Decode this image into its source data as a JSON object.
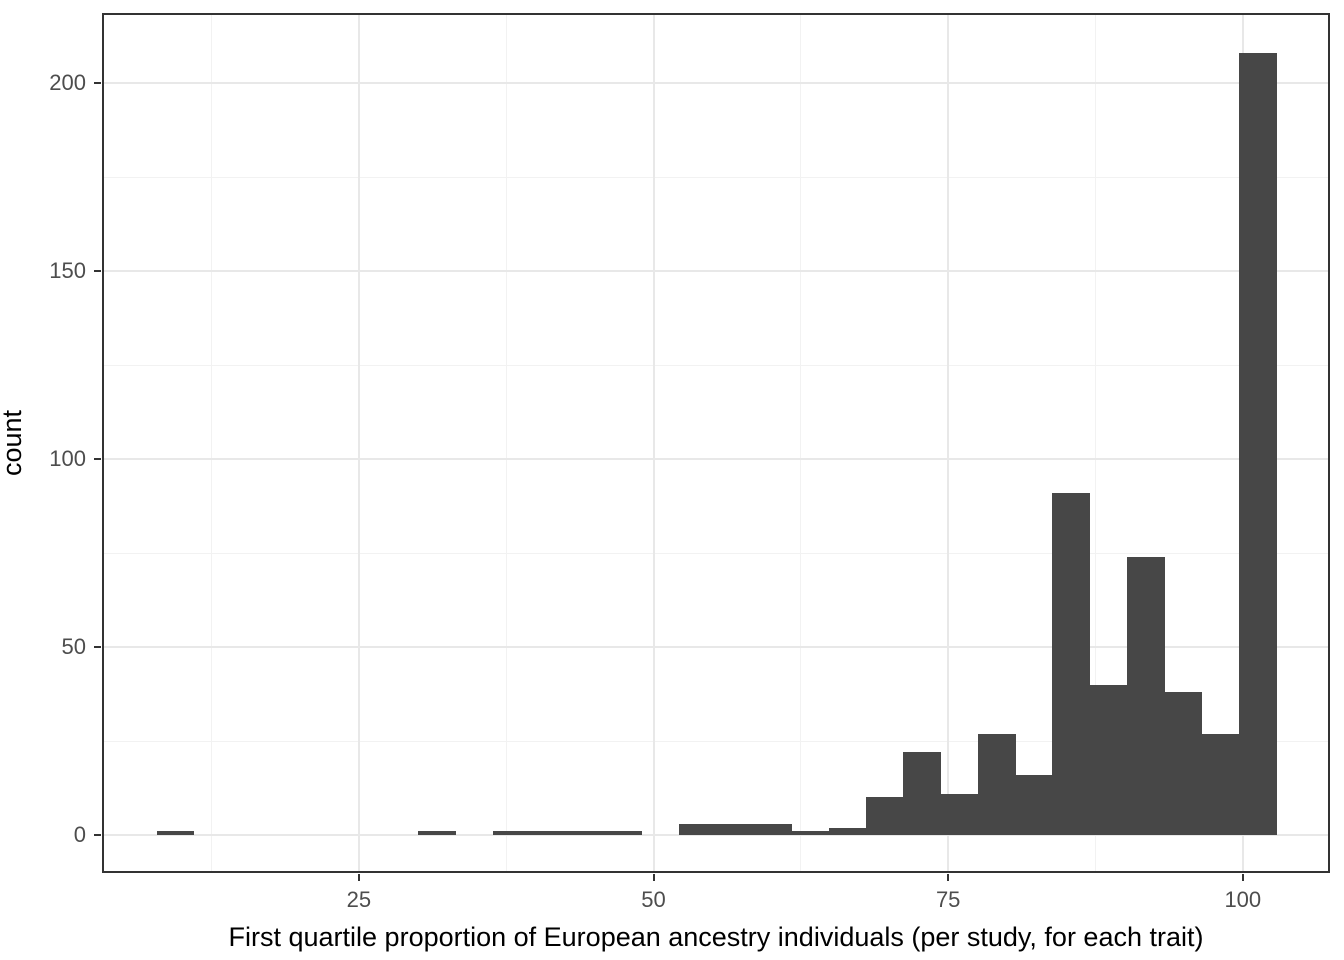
{
  "chart_data": {
    "type": "bar",
    "subtype": "histogram",
    "title": "",
    "xlabel": "First quartile proportion of European ancestry individuals (per study, for each trait)",
    "ylabel": "count",
    "x_ticks": [
      25,
      50,
      75,
      100
    ],
    "y_ticks": [
      0,
      50,
      100,
      150,
      200
    ],
    "x_minor_gridlines": [
      12.5,
      37.5,
      62.5,
      87.5
    ],
    "y_minor_gridlines": [
      25,
      75,
      125,
      175
    ],
    "xlim": [
      3.2,
      107.4
    ],
    "ylim": [
      -10.1,
      218.6
    ],
    "grid": "on",
    "legend": "none",
    "bin_start": 7.84,
    "bin_width": 3.167,
    "counts": [
      1,
      0,
      0,
      0,
      0,
      0,
      0,
      1,
      0,
      1,
      1,
      1,
      1,
      0,
      3,
      3,
      3,
      1,
      2,
      10,
      22,
      11,
      27,
      16,
      91,
      40,
      74,
      38,
      27,
      208
    ],
    "colors": {
      "bar_fill": "#474747",
      "panel_border": "#333333",
      "major_gridline": "#e8e8e8",
      "minor_gridline": "#f2f2f2",
      "tick_mark": "#333333",
      "tick_label": "#4d4d4d",
      "axis_title": "#000000",
      "background": "#ffffff"
    }
  }
}
